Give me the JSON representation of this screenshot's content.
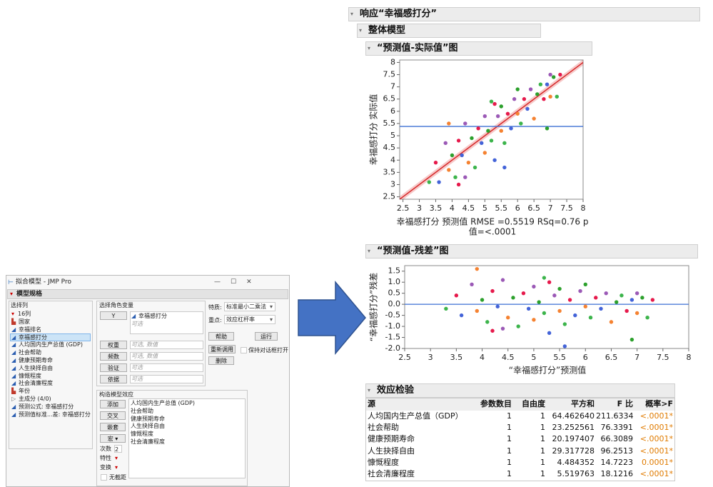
{
  "dialog": {
    "title": "拟合模型 - JMP Pro",
    "header": "模型规格",
    "columns": {
      "title": "选择列",
      "count": "16列",
      "items": [
        "国家",
        "幸福排名",
        "幸福感打分",
        "人均国内生产总值 (GDP)",
        "社会帮助",
        "健康预期寿命",
        "人生抉择自由",
        "慷慨程度",
        "社会清廉程度",
        "年份",
        "主成分 (4/0)",
        "预测公式: 幸福感打分",
        "预测值标准...差: 幸福感打分"
      ]
    },
    "roles": {
      "title": "选择角色变量",
      "items": [
        {
          "button": "Y",
          "value": "幸福感打分",
          "hint": "可选"
        },
        {
          "button": "权重",
          "hint": "可选, 数值"
        },
        {
          "button": "频数",
          "hint": "可选, 数值"
        },
        {
          "button": "验证",
          "hint": "可选"
        },
        {
          "button": "依据",
          "hint": "可选"
        }
      ]
    },
    "personality": {
      "label": "特质:",
      "value": "标准最小二乘法"
    },
    "emphasis": {
      "label": "重点:",
      "value": "效应杠杆率"
    },
    "actions": {
      "help": "帮助",
      "run": "运行",
      "recall": "重新调用",
      "remove": "删除",
      "keep_open": "保持对话框打开"
    },
    "effects": {
      "title": "构造模型效应",
      "buttons": [
        "添加",
        "交叉",
        "嵌套",
        "宏"
      ],
      "degree_label": "次数",
      "degree": "2",
      "attributes": "特性",
      "transform": "变换",
      "no_intercept": "无截距",
      "items": [
        "人均国内生产总值 (GDP)",
        "社会帮助",
        "健康预期寿命",
        "人生抉择自由",
        "慷慨程度",
        "社会清廉程度"
      ]
    }
  },
  "report": {
    "title": "响应“幸福感打分”",
    "whole_model": "整体模型",
    "actual_by_predicted": {
      "title": "“预测值-实际值”图",
      "ylabel": "幸福感打分 实际值",
      "xlabel": [
        "幸福感打分 预测值 RMSE =0.5519 RSq=0.76 p",
        "值=<.0001"
      ],
      "xlim": [
        2.4,
        8
      ],
      "ylim": [
        2.4,
        8.1
      ],
      "xticks": [
        2.5,
        3,
        3.5,
        4,
        4.5,
        5,
        5.5,
        6,
        6.5,
        7,
        7.5,
        8
      ],
      "yticks": [
        2.5,
        3,
        3.5,
        4,
        4.5,
        5,
        5.5,
        6,
        6.5,
        7,
        7.5,
        8
      ],
      "mean_line": 5.38
    },
    "residual_by_predicted": {
      "title": "“预测值-残差”图",
      "ylabel": "“幸福感打分”残差",
      "xlabel": "“幸福感打分”预测值",
      "xlim": [
        2.5,
        8
      ],
      "ylim": [
        -2,
        1.75
      ],
      "xticks": [
        2.5,
        3,
        3.5,
        4,
        4.5,
        5,
        5.5,
        6,
        6.5,
        7,
        7.5,
        8
      ],
      "yticks": [
        1.5,
        {
          "value": 1,
          "label": "1.0"
        },
        0.5,
        {
          "value": 0,
          "label": "0.0"
        },
        -0.5,
        {
          "value": -1,
          "label": "-1.0"
        },
        -1.5,
        {
          "value": -2,
          "label": "-2.0"
        }
      ],
      "zero_line": 0
    },
    "points": {
      "colors": [
        "#3cb44b",
        "#e6194b",
        "#4363d8",
        "#9b59b6",
        "#f58231",
        "#2ca02c"
      ],
      "predicted": [
        3.3,
        3.5,
        3.6,
        3.8,
        3.9,
        4.0,
        4.1,
        4.2,
        4.3,
        4.4,
        4.5,
        4.6,
        4.7,
        4.8,
        4.9,
        5.0,
        5.0,
        5.1,
        5.2,
        5.3,
        5.3,
        5.4,
        5.5,
        5.5,
        5.6,
        5.7,
        5.8,
        5.9,
        6.0,
        6.0,
        6.1,
        6.2,
        6.3,
        6.4,
        6.5,
        6.6,
        6.7,
        6.8,
        6.9,
        7.0,
        7.0,
        7.1,
        7.2,
        7.3,
        5.6,
        4.4,
        3.9,
        6.9,
        5.2,
        4.2
      ],
      "actual": [
        3.1,
        3.9,
        3.1,
        4.7,
        3.6,
        4.2,
        3.3,
        4.8,
        4.2,
        5.5,
        3.9,
        4.9,
        3.7,
        5.3,
        4.7,
        5.8,
        4.3,
        5.2,
        4.8,
        6.3,
        4.0,
        5.8,
        5.2,
        6.2,
        4.7,
        5.9,
        5.3,
        6.5,
        5.9,
        6.9,
        5.5,
        6.5,
        6.1,
        6.9,
        5.7,
        6.7,
        7.1,
        6.5,
        7.1,
        7.5,
        6.6,
        7.4,
        6.6,
        7.5,
        3.7,
        3.3,
        5.5,
        5.3,
        6.4,
        3.0
      ],
      "residual": [
        -0.2,
        0.4,
        -0.5,
        0.9,
        -0.3,
        0.2,
        -0.8,
        0.6,
        -0.1,
        1.1,
        -0.6,
        0.3,
        -1.0,
        0.5,
        -0.2,
        0.8,
        -0.7,
        0.1,
        -0.4,
        1.0,
        -1.3,
        0.4,
        -0.3,
        0.7,
        -0.9,
        0.2,
        -0.5,
        0.6,
        -0.1,
        0.9,
        -0.6,
        0.3,
        -0.2,
        0.5,
        -0.8,
        0.1,
        0.4,
        -0.3,
        0.2,
        0.5,
        -0.4,
        0.3,
        -0.6,
        0.2,
        -1.9,
        -1.1,
        1.6,
        -1.6,
        1.2,
        -1.2
      ]
    },
    "effect_tests": {
      "title": "效应检验",
      "columns": [
        "源",
        "参数数目",
        "自由度",
        "平方和",
        "F 比",
        "概率>F"
      ],
      "rows": [
        [
          "人均国内生产总值（GDP）",
          "1",
          "1",
          "64.462640",
          "211.6334",
          "<.0001*"
        ],
        [
          "社会帮助",
          "1",
          "1",
          "23.252561",
          "76.3391",
          "<.0001*"
        ],
        [
          "健康预期寿命",
          "1",
          "1",
          "20.197407",
          "66.3089",
          "<.0001*"
        ],
        [
          "人生抉择自由",
          "1",
          "1",
          "29.317728",
          "96.2513",
          "<.0001*"
        ],
        [
          "慷慨程度",
          "1",
          "1",
          "4.484352",
          "14.7223",
          "0.0001*"
        ],
        [
          "社会清廉程度",
          "1",
          "1",
          "5.519763",
          "18.1216",
          "<.0001*"
        ]
      ]
    }
  }
}
